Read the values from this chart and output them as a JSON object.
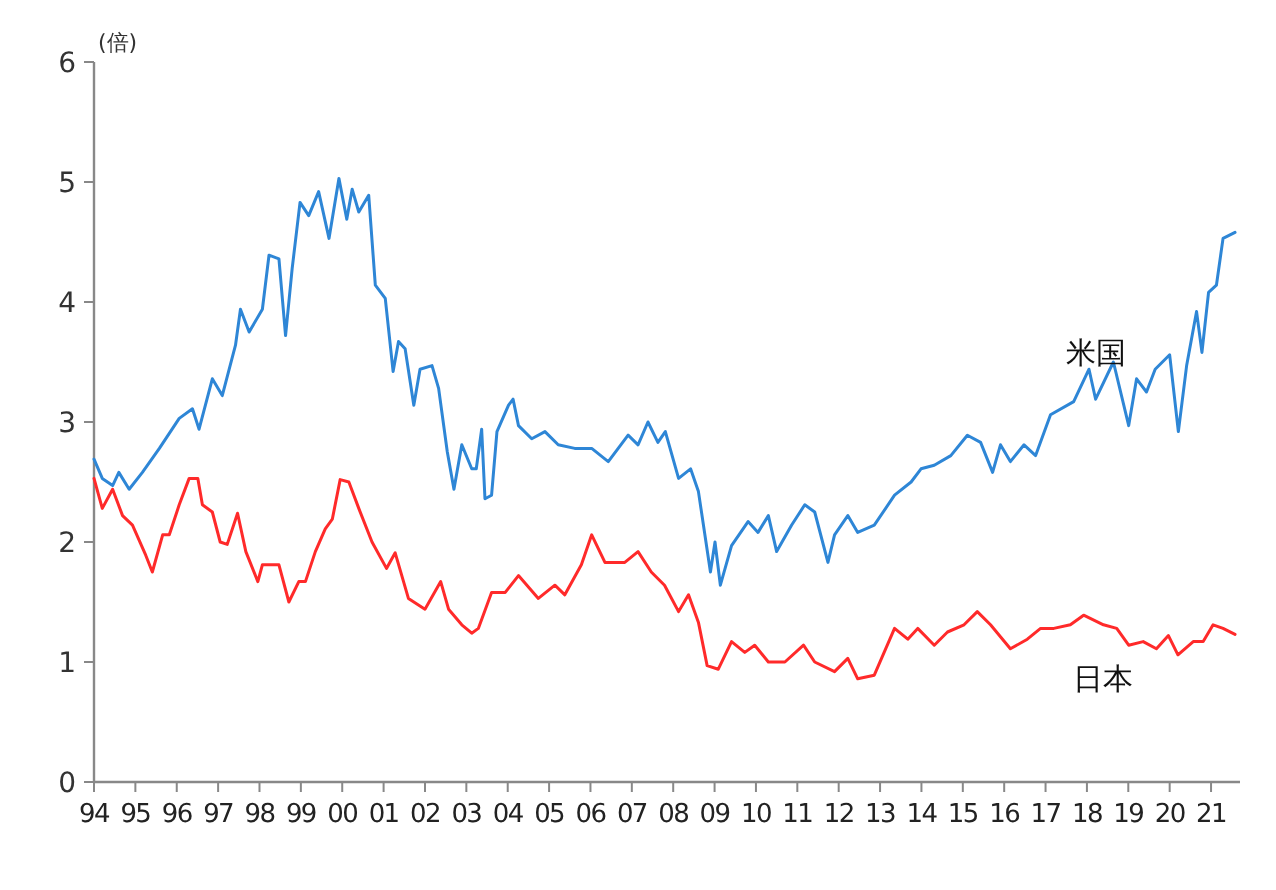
{
  "chart_data": {
    "type": "line",
    "ylabel": "(倍)",
    "legend": false,
    "xlim": [
      1994,
      2021.7
    ],
    "ylim": [
      0,
      6
    ],
    "yticks": [
      0,
      1,
      2,
      3,
      4,
      5,
      6
    ],
    "xticks": [
      {
        "value": 1994,
        "label": "94"
      },
      {
        "value": 1995,
        "label": "95"
      },
      {
        "value": 1996,
        "label": "96"
      },
      {
        "value": 1997,
        "label": "97"
      },
      {
        "value": 1998,
        "label": "98"
      },
      {
        "value": 1999,
        "label": "99"
      },
      {
        "value": 2000,
        "label": "00"
      },
      {
        "value": 2001,
        "label": "01"
      },
      {
        "value": 2002,
        "label": "02"
      },
      {
        "value": 2003,
        "label": "03"
      },
      {
        "value": 2004,
        "label": "04"
      },
      {
        "value": 2005,
        "label": "05"
      },
      {
        "value": 2006,
        "label": "06"
      },
      {
        "value": 2007,
        "label": "07"
      },
      {
        "value": 2008,
        "label": "08"
      },
      {
        "value": 2009,
        "label": "09"
      },
      {
        "value": 2010,
        "label": "10"
      },
      {
        "value": 2011,
        "label": "11"
      },
      {
        "value": 2012,
        "label": "12"
      },
      {
        "value": 2013,
        "label": "13"
      },
      {
        "value": 2014,
        "label": "14"
      },
      {
        "value": 2015,
        "label": "15"
      },
      {
        "value": 2016,
        "label": "16"
      },
      {
        "value": 2017,
        "label": "17"
      },
      {
        "value": 2018,
        "label": "18"
      },
      {
        "value": 2019,
        "label": "19"
      },
      {
        "value": 2020,
        "label": "20"
      },
      {
        "value": 2021,
        "label": "21"
      }
    ],
    "series": [
      {
        "name": "米国",
        "color": "#2e86d6",
        "x": [
          1994.0,
          1994.2,
          1994.45,
          1994.6,
          1994.85,
          1995.17,
          1995.58,
          1996.06,
          1996.38,
          1996.54,
          1996.86,
          1997.1,
          1997.42,
          1997.54,
          1997.75,
          1998.07,
          1998.23,
          1998.47,
          1998.63,
          1998.79,
          1998.98,
          1999.19,
          1999.43,
          1999.68,
          1999.92,
          2000.11,
          2000.24,
          2000.4,
          2000.64,
          2000.8,
          2001.04,
          2001.23,
          2001.36,
          2001.52,
          2001.73,
          2001.88,
          2002.17,
          2002.33,
          2002.54,
          2002.7,
          2002.89,
          2003.13,
          2003.24,
          2003.37,
          2003.45,
          2003.61,
          2003.74,
          2004.02,
          2004.13,
          2004.26,
          2004.58,
          2004.9,
          2005.22,
          2005.62,
          2006.03,
          2006.43,
          2006.91,
          2007.15,
          2007.39,
          2007.63,
          2007.81,
          2008.13,
          2008.42,
          2008.61,
          2008.9,
          2009.01,
          2009.14,
          2009.41,
          2009.81,
          2010.05,
          2010.3,
          2010.5,
          2010.86,
          2011.18,
          2011.42,
          2011.74,
          2011.9,
          2012.22,
          2012.46,
          2012.86,
          2013.35,
          2013.75,
          2013.99,
          2014.31,
          2014.71,
          2015.11,
          2015.43,
          2015.72,
          2015.91,
          2016.15,
          2016.48,
          2016.76,
          2017.12,
          2017.68,
          2018.05,
          2018.21,
          2018.64,
          2019.01,
          2019.2,
          2019.44,
          2019.65,
          2020.0,
          2020.21,
          2020.41,
          2020.65,
          2020.78,
          2020.94,
          2021.13,
          2021.29,
          2021.58
        ],
        "values": [
          2.69,
          2.53,
          2.47,
          2.58,
          2.44,
          2.58,
          2.78,
          3.03,
          3.11,
          2.94,
          3.36,
          3.22,
          3.64,
          3.94,
          3.75,
          3.94,
          4.39,
          4.36,
          3.72,
          4.28,
          4.83,
          4.72,
          4.92,
          4.53,
          5.03,
          4.69,
          4.94,
          4.75,
          4.89,
          4.14,
          4.03,
          3.42,
          3.67,
          3.61,
          3.14,
          3.44,
          3.47,
          3.28,
          2.75,
          2.44,
          2.81,
          2.61,
          2.61,
          2.94,
          2.36,
          2.39,
          2.92,
          3.14,
          3.19,
          2.97,
          2.86,
          2.92,
          2.81,
          2.78,
          2.78,
          2.67,
          2.89,
          2.81,
          3.0,
          2.83,
          2.92,
          2.53,
          2.61,
          2.42,
          1.75,
          2.0,
          1.64,
          1.97,
          2.17,
          2.08,
          2.22,
          1.92,
          2.14,
          2.31,
          2.25,
          1.83,
          2.06,
          2.22,
          2.08,
          2.14,
          2.39,
          2.5,
          2.61,
          2.64,
          2.72,
          2.89,
          2.83,
          2.58,
          2.81,
          2.67,
          2.81,
          2.72,
          3.06,
          3.17,
          3.44,
          3.19,
          3.5,
          2.97,
          3.36,
          3.25,
          3.44,
          3.56,
          2.92,
          3.47,
          3.92,
          3.58,
          4.08,
          4.14,
          4.53,
          4.58
        ]
      },
      {
        "name": "日本",
        "color": "#ff2a2a",
        "x": [
          1994.0,
          1994.2,
          1994.45,
          1994.69,
          1994.93,
          1995.25,
          1995.41,
          1995.66,
          1995.82,
          1996.06,
          1996.3,
          1996.51,
          1996.62,
          1996.86,
          1997.05,
          1997.22,
          1997.47,
          1997.67,
          1997.96,
          1998.07,
          1998.47,
          1998.71,
          1998.95,
          1999.11,
          1999.35,
          1999.59,
          1999.76,
          1999.95,
          2000.16,
          2000.4,
          2000.72,
          2001.07,
          2001.28,
          2001.6,
          2002.0,
          2002.38,
          2002.57,
          2002.89,
          2003.13,
          2003.29,
          2003.61,
          2003.94,
          2004.26,
          2004.74,
          2005.14,
          2005.38,
          2005.78,
          2006.03,
          2006.35,
          2006.83,
          2007.15,
          2007.47,
          2007.79,
          2008.13,
          2008.37,
          2008.61,
          2008.82,
          2009.09,
          2009.41,
          2009.73,
          2009.97,
          2010.3,
          2010.7,
          2011.15,
          2011.42,
          2011.9,
          2012.22,
          2012.46,
          2012.86,
          2013.35,
          2013.67,
          2013.91,
          2014.31,
          2014.63,
          2015.03,
          2015.35,
          2015.67,
          2016.15,
          2016.56,
          2016.88,
          2017.2,
          2017.6,
          2017.92,
          2018.4,
          2018.72,
          2019.01,
          2019.36,
          2019.68,
          2019.97,
          2020.2,
          2020.57,
          2020.81,
          2021.05,
          2021.29,
          2021.58
        ],
        "values": [
          2.53,
          2.28,
          2.44,
          2.22,
          2.14,
          1.89,
          1.75,
          2.06,
          2.06,
          2.31,
          2.53,
          2.53,
          2.31,
          2.25,
          2.0,
          1.98,
          2.24,
          1.92,
          1.67,
          1.81,
          1.81,
          1.5,
          1.67,
          1.67,
          1.92,
          2.11,
          2.19,
          2.52,
          2.5,
          2.28,
          2.0,
          1.78,
          1.91,
          1.53,
          1.44,
          1.67,
          1.44,
          1.31,
          1.24,
          1.28,
          1.58,
          1.58,
          1.72,
          1.53,
          1.64,
          1.56,
          1.81,
          2.06,
          1.83,
          1.83,
          1.92,
          1.75,
          1.64,
          1.42,
          1.56,
          1.33,
          0.97,
          0.94,
          1.17,
          1.08,
          1.14,
          1.0,
          1.0,
          1.14,
          1.0,
          0.92,
          1.03,
          0.86,
          0.89,
          1.28,
          1.19,
          1.28,
          1.14,
          1.25,
          1.31,
          1.42,
          1.31,
          1.11,
          1.19,
          1.28,
          1.28,
          1.31,
          1.39,
          1.31,
          1.28,
          1.14,
          1.17,
          1.11,
          1.22,
          1.06,
          1.17,
          1.17,
          1.31,
          1.28,
          1.23
        ]
      }
    ]
  }
}
